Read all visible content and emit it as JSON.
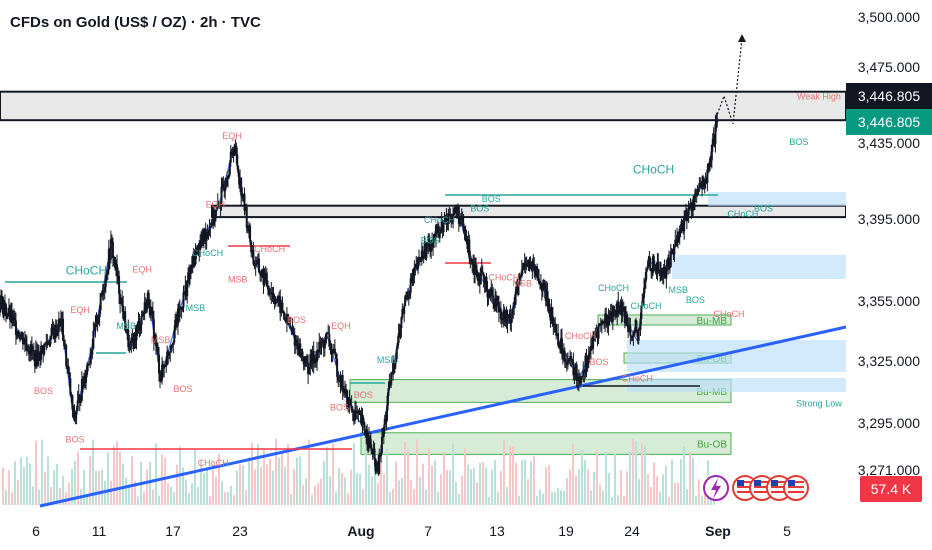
{
  "header": {
    "title": "CFDs on Gold (US$ / OZ) · 2h · TVC"
  },
  "chart_data": {
    "type": "candlestick",
    "title": "CFDs on Gold (US$ / OZ) · 2h · TVC",
    "ylim": [
      3262,
      3510
    ],
    "y_ticks": [
      3500.0,
      3475.0,
      3435.0,
      3395.0,
      3355.0,
      3325.0,
      3295.0,
      3271.0
    ],
    "y_tick_labels": [
      "3,500.000",
      "3,475.000",
      "3,435.000",
      "3,395.000",
      "3,355.000",
      "3,325.000",
      "3,295.000",
      "3,271.000"
    ],
    "x_tick_labels": [
      "6",
      "11",
      "17",
      "23",
      "Aug",
      "7",
      "13",
      "19",
      "24",
      "Sep",
      "5"
    ],
    "x_tick_days": [
      6,
      11,
      17,
      23,
      32,
      38,
      44,
      50,
      55,
      63,
      68
    ],
    "x_range_days": [
      3,
      76
    ],
    "price_path": [
      [
        3,
        3355
      ],
      [
        6,
        3326
      ],
      [
        8,
        3345
      ],
      [
        9,
        3296
      ],
      [
        10.5,
        3334
      ],
      [
        12,
        3383
      ],
      [
        13.5,
        3330
      ],
      [
        15,
        3357
      ],
      [
        16,
        3317
      ],
      [
        17.5,
        3348
      ],
      [
        19,
        3378
      ],
      [
        21,
        3400
      ],
      [
        22.5,
        3434
      ],
      [
        24,
        3375
      ],
      [
        26,
        3352
      ],
      [
        28,
        3322
      ],
      [
        29.5,
        3337
      ],
      [
        31,
        3305
      ],
      [
        32.5,
        3290
      ],
      [
        33.5,
        3270
      ],
      [
        34.5,
        3310
      ],
      [
        36,
        3357
      ],
      [
        37.5,
        3378
      ],
      [
        39,
        3390
      ],
      [
        40.5,
        3400
      ],
      [
        42,
        3372
      ],
      [
        43.5,
        3358
      ],
      [
        45,
        3344
      ],
      [
        46.5,
        3376
      ],
      [
        48,
        3362
      ],
      [
        49.5,
        3333
      ],
      [
        51,
        3316
      ],
      [
        52.5,
        3342
      ],
      [
        54,
        3352
      ],
      [
        55.5,
        3335
      ],
      [
        56.5,
        3375
      ],
      [
        58,
        3368
      ],
      [
        59.5,
        3390
      ],
      [
        61,
        3408
      ],
      [
        62,
        3417
      ],
      [
        63,
        3448
      ]
    ],
    "current_price": 3446.805,
    "price_labels": [
      "3,446.805",
      "3,446.805"
    ],
    "volume_label": "57.4 K",
    "zones": [
      {
        "name": "supply-zone-top",
        "y_top": 3462,
        "y_bottom": 3447,
        "color": "#e0e0e0"
      },
      {
        "name": "resistance-zone",
        "y_top": 3402,
        "y_bottom": 3396,
        "color": "#e0e0e0"
      },
      {
        "name": "bu-mb-upper",
        "label": "Bu-MB",
        "y_top": 3348,
        "y_bottom": 3343,
        "color": "#c8e6c9"
      },
      {
        "name": "bu-ob-upper",
        "label": "Bu-OB",
        "y_top": 3329,
        "y_bottom": 3324,
        "color": "#c8e6c9"
      },
      {
        "name": "bu-mb-lower",
        "label": "Bu-MB",
        "y_top": 3316,
        "y_bottom": 3305,
        "color": "#c8e6c9"
      },
      {
        "name": "bu-ob-lower",
        "label": "Bu-OB",
        "y_top": 3290,
        "y_bottom": 3279,
        "color": "#c8e6c9"
      }
    ],
    "annotations": [
      {
        "text": "CHoCH",
        "day": 10,
        "y": 3368,
        "color": "#26a69a"
      },
      {
        "text": "EQH",
        "day": 9.5,
        "y": 3349,
        "color": "#e57373"
      },
      {
        "text": "EQH",
        "day": 14.5,
        "y": 3369,
        "color": "#e57373"
      },
      {
        "text": "EQH",
        "day": 20.8,
        "y": 3401,
        "color": "#e57373"
      },
      {
        "text": "EQH",
        "day": 22.3,
        "y": 3437,
        "color": "#e57373"
      },
      {
        "text": "EQH",
        "day": 30.5,
        "y": 3341,
        "color": "#e57373"
      },
      {
        "text": "MSB",
        "day": 19,
        "y": 3350,
        "color": "#26a69a"
      },
      {
        "text": "MSB",
        "day": 22.8,
        "y": 3364,
        "color": "#e57373"
      },
      {
        "text": "MSB",
        "day": 13.2,
        "y": 3341,
        "color": "#26a69a"
      },
      {
        "text": "MSB",
        "day": 16,
        "y": 3334,
        "color": "#e57373"
      },
      {
        "text": "MSB",
        "day": 34.3,
        "y": 3324,
        "color": "#26a69a"
      },
      {
        "text": "MSB",
        "day": 46.2,
        "y": 3362,
        "color": "#e57373"
      },
      {
        "text": "MSB",
        "day": 59.3,
        "y": 3359,
        "color": "#26a69a"
      },
      {
        "text": "BOS",
        "day": 6.6,
        "y": 3309,
        "color": "#e57373"
      },
      {
        "text": "BOS",
        "day": 9.1,
        "y": 3285,
        "color": "#e57373"
      },
      {
        "text": "BOS",
        "day": 17.9,
        "y": 3310,
        "color": "#e57373"
      },
      {
        "text": "BOS",
        "day": 27.2,
        "y": 3344,
        "color": "#e57373"
      },
      {
        "text": "BOS",
        "day": 30.4,
        "y": 3301,
        "color": "#e57373"
      },
      {
        "text": "BOS",
        "day": 32.2,
        "y": 3307,
        "color": "#e57373"
      },
      {
        "text": "BOS",
        "day": 38.2,
        "y": 3383,
        "color": "#26a69a"
      },
      {
        "text": "BOS",
        "day": 42.5,
        "y": 3399,
        "color": "#26a69a"
      },
      {
        "text": "BOS",
        "day": 43.5,
        "y": 3404,
        "color": "#26a69a"
      },
      {
        "text": "BOS",
        "day": 52.5,
        "y": 3323,
        "color": "#e57373"
      },
      {
        "text": "BOS",
        "day": 60.9,
        "y": 3354,
        "color": "#26a69a"
      },
      {
        "text": "BOS",
        "day": 66.3,
        "y": 3399,
        "color": "#26a69a"
      },
      {
        "text": "BOS",
        "day": 69.3,
        "y": 3434,
        "color": "#26a69a"
      },
      {
        "text": "CHoCH",
        "day": 57,
        "y": 3419,
        "color": "#26a69a"
      },
      {
        "text": "CHoCH",
        "day": 39,
        "y": 3393,
        "color": "#26a69a"
      },
      {
        "text": "CHoCH",
        "day": 20.1,
        "y": 3377,
        "color": "#26a69a"
      },
      {
        "text": "CHoCH",
        "day": 25.2,
        "y": 3379,
        "color": "#e57373"
      },
      {
        "text": "CHoCH",
        "day": 20.6,
        "y": 3273,
        "color": "#e57373"
      },
      {
        "text": "CHoCH",
        "day": 44.6,
        "y": 3365,
        "color": "#e57373"
      },
      {
        "text": "CHoCH",
        "day": 53.6,
        "y": 3360,
        "color": "#26a69a"
      },
      {
        "text": "CHoCH",
        "day": 51.1,
        "y": 3336,
        "color": "#e57373"
      },
      {
        "text": "CHoCH",
        "day": 56.3,
        "y": 3351,
        "color": "#26a69a"
      },
      {
        "text": "CHoCH",
        "day": 55.5,
        "y": 3315,
        "color": "#e57373"
      },
      {
        "text": "CHoCH",
        "day": 63.8,
        "y": 3347,
        "color": "#e57373"
      },
      {
        "text": "CHoCH",
        "day": 64.8,
        "y": 3396,
        "color": "#26a69a"
      },
      {
        "text": "Strong Low",
        "day": 71.5,
        "y": 3303,
        "color": "#26a69a"
      },
      {
        "text": "Weak High",
        "day": 71.5,
        "y": 3458,
        "color": "#e57373"
      }
    ]
  },
  "icons": [
    "lightning-icon",
    "us-flag-icon",
    "us-flag-icon",
    "us-flag-icon",
    "us-flag-icon"
  ]
}
